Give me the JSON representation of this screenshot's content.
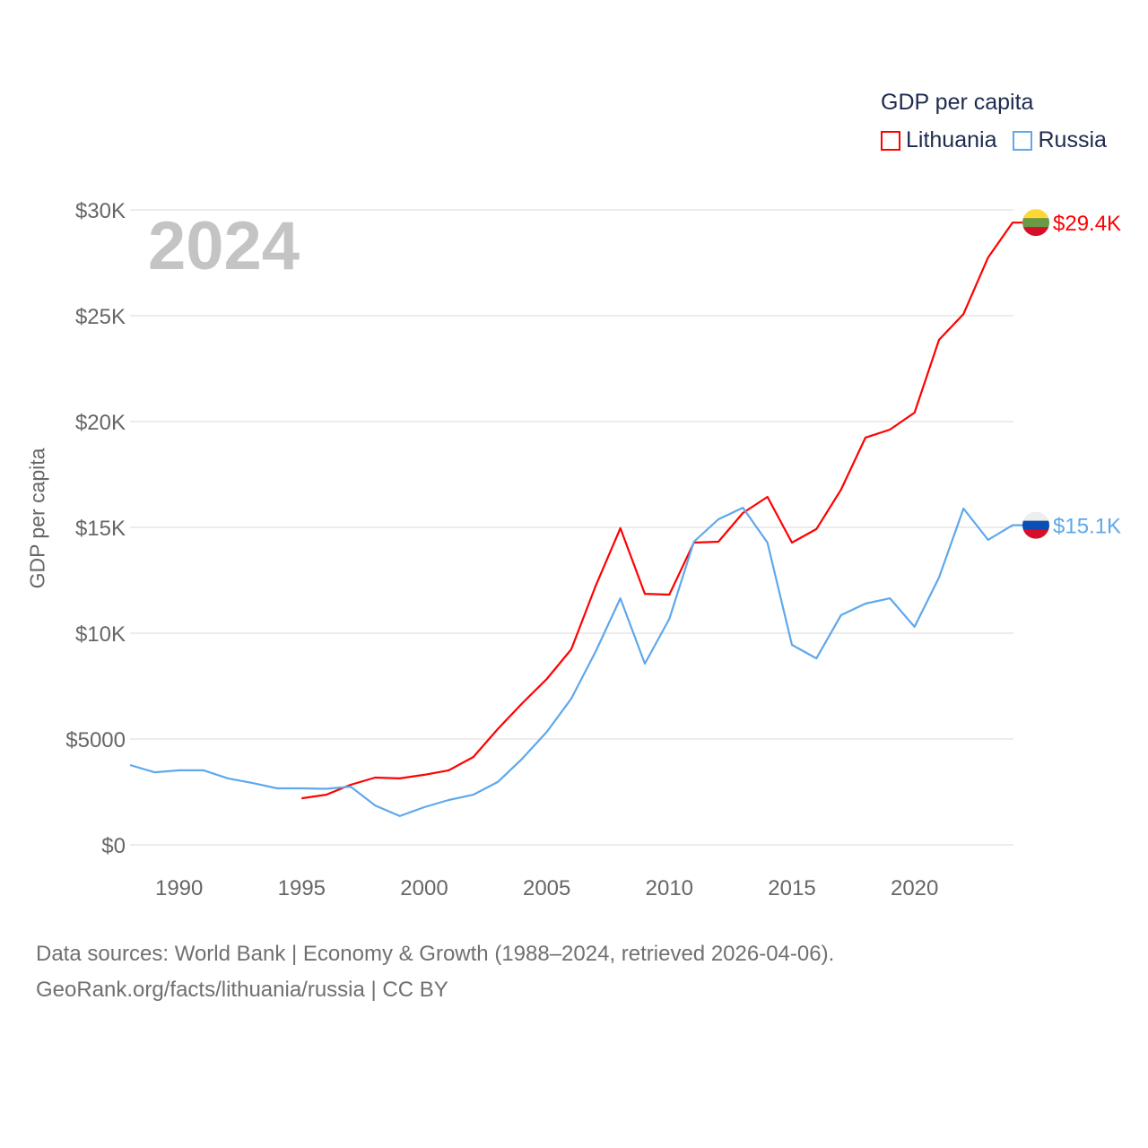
{
  "chart_data": {
    "type": "line",
    "year_label": "2024",
    "ylabel": "GDP per capita",
    "legend_title": "GDP per capita",
    "legend_placement": "top-right",
    "ylim": [
      0,
      30000
    ],
    "xlim": [
      1988,
      2024
    ],
    "y_ticks": [
      {
        "value": 0,
        "label": "$0"
      },
      {
        "value": 5000,
        "label": "$5000"
      },
      {
        "value": 10000,
        "label": "$10K"
      },
      {
        "value": 15000,
        "label": "$15K"
      },
      {
        "value": 20000,
        "label": "$20K"
      },
      {
        "value": 25000,
        "label": "$25K"
      },
      {
        "value": 30000,
        "label": "$30K"
      }
    ],
    "x_ticks": [
      {
        "value": 1990,
        "label": "1990"
      },
      {
        "value": 1995,
        "label": "1995"
      },
      {
        "value": 2000,
        "label": "2000"
      },
      {
        "value": 2005,
        "label": "2005"
      },
      {
        "value": 2010,
        "label": "2010"
      },
      {
        "value": 2015,
        "label": "2015"
      },
      {
        "value": 2020,
        "label": "2020"
      }
    ],
    "grid": true,
    "series": [
      {
        "name": "Lithuania",
        "color": "#ff0000",
        "end_label": "$29.4K",
        "flag": [
          "#fdd835",
          "#6a9a45",
          "#d50f2a"
        ],
        "x": [
          1995,
          1996,
          1997,
          1998,
          1999,
          2000,
          2001,
          2002,
          2003,
          2004,
          2005,
          2006,
          2007,
          2008,
          2009,
          2010,
          2011,
          2012,
          2013,
          2014,
          2015,
          2016,
          2017,
          2018,
          2019,
          2020,
          2021,
          2022,
          2023,
          2024
        ],
        "values": [
          2200,
          2370,
          2840,
          3180,
          3140,
          3310,
          3520,
          4150,
          5470,
          6690,
          7840,
          9240,
          12250,
          14960,
          11860,
          11820,
          14280,
          14320,
          15680,
          16440,
          14280,
          14920,
          16780,
          19240,
          19620,
          20420,
          23860,
          25080,
          27750,
          29400
        ]
      },
      {
        "name": "Russia",
        "color": "#5ea8ec",
        "end_label": "$15.1K",
        "flag": [
          "#eeeeee",
          "#0a4fb5",
          "#d50f2a"
        ],
        "x": [
          1988,
          1989,
          1990,
          1991,
          1992,
          1993,
          1994,
          1995,
          1996,
          1997,
          1998,
          1999,
          2000,
          2001,
          2002,
          2003,
          2004,
          2005,
          2006,
          2007,
          2008,
          2009,
          2010,
          2011,
          2012,
          2013,
          2014,
          2015,
          2016,
          2017,
          2018,
          2019,
          2020,
          2021,
          2022,
          2023,
          2024
        ],
        "values": [
          3770,
          3430,
          3520,
          3520,
          3140,
          2920,
          2670,
          2670,
          2650,
          2750,
          1860,
          1360,
          1780,
          2120,
          2370,
          2970,
          4070,
          5340,
          6910,
          9150,
          11650,
          8560,
          10680,
          14320,
          15380,
          15930,
          14280,
          9450,
          8810,
          10850,
          11400,
          11650,
          10300,
          12630,
          15890,
          14410,
          15100
        ]
      }
    ]
  },
  "footer": {
    "line1": "Data sources: World Bank | Economy & Growth (1988–2024, retrieved 2026-04-06).",
    "line2": "GeoRank.org/facts/lithuania/russia | CC BY"
  }
}
